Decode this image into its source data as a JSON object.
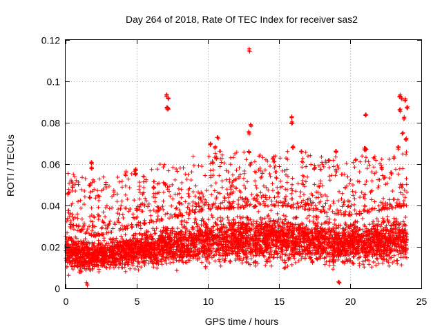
{
  "chart_data": {
    "type": "scatter",
    "title": "Day 264 of 2018, Rate Of TEC Index for receiver sas2",
    "xlabel": "GPS time / hours",
    "ylabel": "ROTI / TECUs",
    "xlim": [
      0,
      25
    ],
    "ylim": [
      0,
      0.12
    ],
    "xticks": [
      0,
      5,
      10,
      15,
      20,
      25
    ],
    "xtick_labels": [
      "0",
      "5",
      "10",
      "15",
      "20",
      "25"
    ],
    "yticks": [
      0,
      0.02,
      0.04,
      0.06,
      0.08,
      0.1,
      0.12
    ],
    "ytick_labels": [
      "0",
      "0.02",
      "0.04",
      "0.06",
      "0.08",
      "0.1",
      "0.12"
    ],
    "grid": true,
    "marker": "+",
    "color": "#ff0000",
    "series": [
      {
        "name": "ROTI",
        "description": "dense per-epoch ROTI samples across 0-24 h; baseline ~0.01-0.02 TECU/min",
        "baseline_profile": [
          {
            "x": 0,
            "low": 0.005,
            "high": 0.03
          },
          {
            "x": 2,
            "low": 0.006,
            "high": 0.025
          },
          {
            "x": 5,
            "low": 0.007,
            "high": 0.03
          },
          {
            "x": 10,
            "low": 0.008,
            "high": 0.038
          },
          {
            "x": 15,
            "low": 0.008,
            "high": 0.04
          },
          {
            "x": 20,
            "low": 0.008,
            "high": 0.035
          },
          {
            "x": 24,
            "low": 0.008,
            "high": 0.04
          }
        ],
        "notable_points": [
          {
            "x": 0.2,
            "y": 0.046
          },
          {
            "x": 0.5,
            "y": 0.049
          },
          {
            "x": 1.7,
            "y": 0.044
          },
          {
            "x": 1.8,
            "y": 0.061
          },
          {
            "x": 1.8,
            "y": 0.058
          },
          {
            "x": 1.7,
            "y": 0.05
          },
          {
            "x": 4.2,
            "y": 0.055
          },
          {
            "x": 4.9,
            "y": 0.057
          },
          {
            "x": 4.9,
            "y": 0.055
          },
          {
            "x": 6.2,
            "y": 0.049
          },
          {
            "x": 7.1,
            "y": 0.093
          },
          {
            "x": 7.2,
            "y": 0.092
          },
          {
            "x": 7.1,
            "y": 0.087
          },
          {
            "x": 7.2,
            "y": 0.087
          },
          {
            "x": 7.0,
            "y": 0.05
          },
          {
            "x": 10.2,
            "y": 0.07
          },
          {
            "x": 10.5,
            "y": 0.068
          },
          {
            "x": 10.7,
            "y": 0.073
          },
          {
            "x": 10.6,
            "y": 0.063
          },
          {
            "x": 12.9,
            "y": 0.115
          },
          {
            "x": 13.0,
            "y": 0.079
          },
          {
            "x": 12.9,
            "y": 0.075
          },
          {
            "x": 12.9,
            "y": 0.066
          },
          {
            "x": 13.0,
            "y": 0.06
          },
          {
            "x": 14.6,
            "y": 0.063
          },
          {
            "x": 15.9,
            "y": 0.083
          },
          {
            "x": 15.9,
            "y": 0.08
          },
          {
            "x": 16.0,
            "y": 0.068
          },
          {
            "x": 16.6,
            "y": 0.066
          },
          {
            "x": 17.5,
            "y": 0.058
          },
          {
            "x": 18.5,
            "y": 0.062
          },
          {
            "x": 19.0,
            "y": 0.066
          },
          {
            "x": 20.4,
            "y": 0.062
          },
          {
            "x": 21.0,
            "y": 0.067
          },
          {
            "x": 21.1,
            "y": 0.067
          },
          {
            "x": 21.1,
            "y": 0.084
          },
          {
            "x": 22.2,
            "y": 0.058
          },
          {
            "x": 23.1,
            "y": 0.063
          },
          {
            "x": 23.5,
            "y": 0.093
          },
          {
            "x": 23.6,
            "y": 0.092
          },
          {
            "x": 23.5,
            "y": 0.086
          },
          {
            "x": 23.9,
            "y": 0.091
          },
          {
            "x": 24.0,
            "y": 0.087
          },
          {
            "x": 23.8,
            "y": 0.082
          },
          {
            "x": 23.7,
            "y": 0.075
          },
          {
            "x": 23.9,
            "y": 0.072
          },
          {
            "x": 23.4,
            "y": 0.068
          },
          {
            "x": 22.9,
            "y": 0.056
          },
          {
            "x": 19.2,
            "y": 0.003
          },
          {
            "x": 1.5,
            "y": 0.002
          }
        ]
      }
    ]
  }
}
